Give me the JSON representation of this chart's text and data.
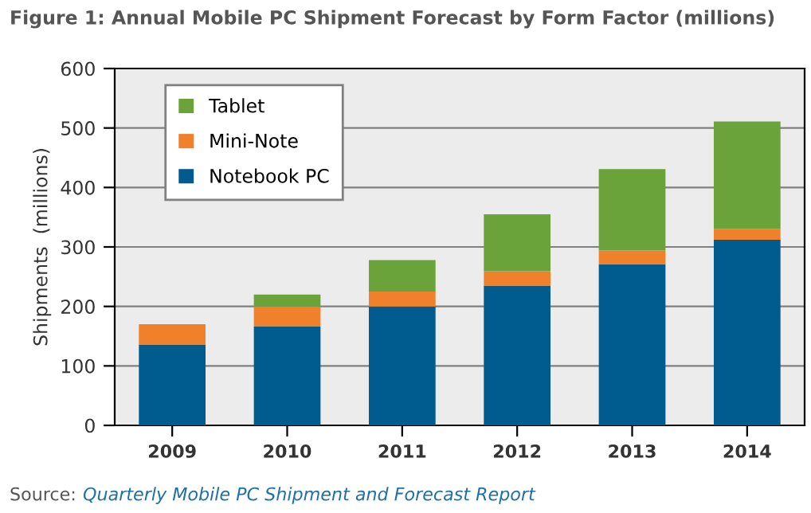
{
  "chart_data": {
    "type": "bar",
    "title": "Figure 1: Annual Mobile PC Shipment Forecast by Form Factor (millions)",
    "ylabel": "Shipments  (millions)",
    "categories": [
      "2009",
      "2010",
      "2011",
      "2012",
      "2013",
      "2014"
    ],
    "stacked": true,
    "series": [
      {
        "name": "Notebook PC",
        "color": "#005b8e",
        "values": [
          136,
          166,
          200,
          235,
          271,
          312
        ]
      },
      {
        "name": "Mini-Note",
        "color": "#f0802a",
        "values": [
          34,
          34,
          25,
          24,
          23,
          18
        ]
      },
      {
        "name": "Tablet",
        "color": "#6aa339",
        "values": [
          0,
          20,
          53,
          96,
          137,
          181
        ]
      }
    ],
    "ylim": [
      0,
      600
    ],
    "yticks": [
      0,
      100,
      200,
      300,
      400,
      500,
      600
    ],
    "grid": "y",
    "legend": "top left",
    "annotations": [
      "Source:",
      "Quarterly Mobile PC Shipment and Forecast Report"
    ]
  }
}
